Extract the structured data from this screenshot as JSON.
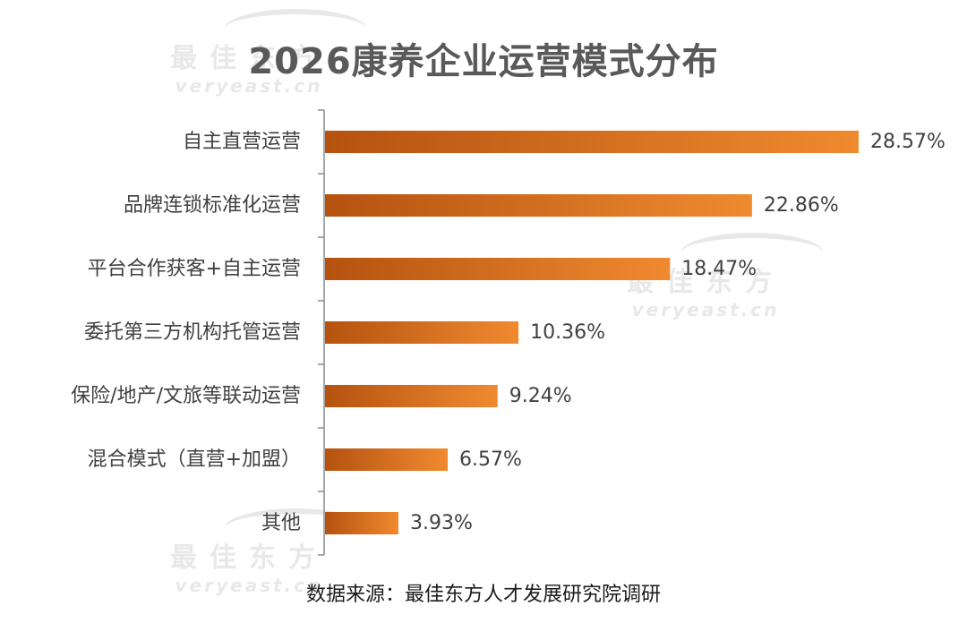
{
  "watermark": {
    "cn": "最佳东方",
    "en": "veryeast.cn"
  },
  "colors": {
    "bar_start": "#b5520f",
    "bar_end": "#f08a30",
    "axis": "#8c8c8c",
    "label": "#404040"
  },
  "chart_data": {
    "type": "bar",
    "orientation": "horizontal",
    "title": "2026康养企业运营模式分布",
    "categories": [
      "自主直营运营",
      "品牌连锁标准化运营",
      "平台合作获客+自主运营",
      "委托第三方机构托管运营",
      "保险/地产/文旅等联动运营",
      "混合模式（直营+加盟）",
      "其他"
    ],
    "values": [
      28.57,
      22.86,
      18.47,
      10.36,
      9.24,
      6.57,
      3.93
    ],
    "value_labels": [
      "28.57%",
      "22.86%",
      "18.47%",
      "10.36%",
      "9.24%",
      "6.57%",
      "3.93%"
    ],
    "xlim": [
      0,
      28.57
    ],
    "grid": false,
    "legend": "none",
    "source": "数据来源：最佳东方人才发展研究院调研"
  }
}
